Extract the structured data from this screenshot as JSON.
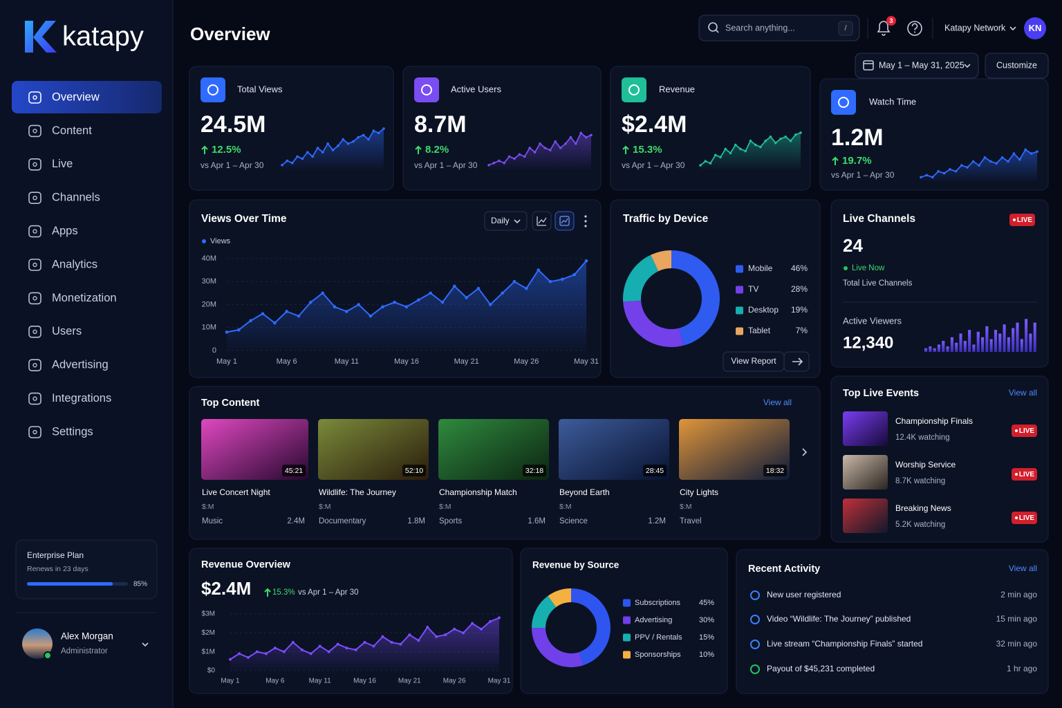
{
  "sidebar": {
    "brand": "katapy",
    "nav": [
      "Overview",
      "Content",
      "Live",
      "Channels",
      "Apps",
      "Analytics",
      "Monetization",
      "Users",
      "Advertising",
      "Integrations",
      "Settings"
    ],
    "plan": {
      "name": "Enterprise Plan",
      "renewal": "Renews in 23 days",
      "usage": {
        "value": 85,
        "label": "85%"
      }
    },
    "user": {
      "name": "Alex Morgan",
      "role": "Administrator"
    }
  },
  "header": {
    "title": "Overview",
    "search_placeholder": "Search anything...",
    "search_shortcut": "/",
    "notifications": 3,
    "account": "Katapy Network",
    "initials": "KN",
    "date_range": "May 1 – May 31, 2025",
    "customize": "Customize"
  },
  "kpis": [
    {
      "label": "Total Views",
      "value": "24.5M",
      "change": "12.5%",
      "comparison": "vs Apr 1 – Apr 30",
      "color": "#2f6bff",
      "trend": {
        "ylim": [
          0,
          10
        ],
        "values": [
          1,
          2,
          1.5,
          3,
          2.5,
          4,
          3,
          5,
          4,
          6,
          4.5,
          5.5,
          7,
          6,
          6.5,
          7.5,
          8,
          7,
          9,
          8.5,
          9.5
        ]
      }
    },
    {
      "label": "Active Users",
      "value": "8.7M",
      "change": "8.2%",
      "comparison": "vs Apr 1 – Apr 30",
      "color": "#7a4df2",
      "trend": {
        "ylim": [
          0,
          10
        ],
        "values": [
          1,
          1.5,
          2,
          1.5,
          3,
          2.5,
          3.5,
          3,
          5,
          4,
          6,
          5,
          4.5,
          6.5,
          5,
          6,
          7.5,
          6,
          8.5,
          7.5,
          8
        ]
      }
    },
    {
      "label": "Revenue",
      "value": "$2.4M",
      "change": "15.3%",
      "comparison": "vs Apr 1 – Apr 30",
      "color": "#1fbf98",
      "trend": {
        "ylim": [
          0,
          10
        ],
        "values": [
          1,
          2,
          1.5,
          3.5,
          3,
          5,
          4,
          6,
          5,
          4.5,
          7,
          6,
          5.5,
          7,
          8,
          6.5,
          7.5,
          8,
          7,
          8.5,
          9
        ]
      }
    },
    {
      "label": "Watch Time",
      "value": "1.2M",
      "change": "19.7%",
      "comparison": "vs Apr 1 – Apr 30",
      "color": "#2f6bff",
      "trend": {
        "ylim": [
          0,
          10
        ],
        "values": [
          1,
          1.5,
          1,
          2.5,
          2,
          3,
          2.5,
          4,
          3.5,
          5,
          4,
          6,
          5,
          4.5,
          6,
          5,
          7,
          5.5,
          8,
          7,
          7.5
        ]
      }
    }
  ],
  "views_over_time": {
    "type": "line",
    "title": "Views Over Time",
    "interval": "Daily",
    "grid": true,
    "categories": [
      "May 1",
      null,
      null,
      null,
      null,
      "May 6",
      null,
      null,
      null,
      null,
      "May 11",
      null,
      null,
      null,
      null,
      "May 16",
      null,
      null,
      null,
      null,
      "May 21",
      null,
      null,
      null,
      null,
      "May 26",
      null,
      null,
      null,
      null,
      "May 31"
    ],
    "series": [
      {
        "name": "Views",
        "color": "#2f6bff",
        "values": [
          8,
          9,
          13,
          16,
          12,
          17,
          15,
          21,
          25,
          19,
          17,
          20,
          15,
          19,
          21,
          19,
          22,
          25,
          21,
          28,
          23,
          27,
          20,
          25,
          30,
          27,
          35,
          30,
          31,
          33,
          39
        ]
      }
    ],
    "ylim": [
      0,
      40
    ],
    "yticks": [
      0,
      {
        "value": 10,
        "label": "10M"
      },
      {
        "value": 20,
        "label": "20M"
      },
      {
        "value": 30,
        "label": "30M"
      },
      {
        "value": 40,
        "label": "40M"
      }
    ]
  },
  "traffic_by_device": {
    "type": "pie",
    "title": "Traffic by Device",
    "categories": [
      "Mobile",
      "TV",
      "Desktop",
      "Tablet"
    ],
    "values": [
      46,
      28,
      19,
      7
    ],
    "value_labels": [
      "46%",
      "28%",
      "19%",
      "7%"
    ],
    "colors": [
      "#2f5bf0",
      "#7440ea",
      "#16aeb0",
      "#eaa55e"
    ],
    "action": "View Report"
  },
  "live_channels": {
    "title": "Live Channels",
    "badge": "LIVE",
    "count": 24,
    "status": "Live Now",
    "count_label": "Total Live Channels",
    "viewers_label": "Active Viewers",
    "viewers": "12,340",
    "viewer_trend": {
      "type": "bar",
      "color": "#5b45f0",
      "ylim": [
        0,
        10
      ],
      "values": [
        1,
        1.5,
        1,
        2,
        3,
        1.5,
        4,
        2.5,
        5,
        3,
        6,
        2,
        5.5,
        4,
        7,
        3.5,
        6,
        5,
        7.5,
        4,
        6.5,
        8,
        3.5,
        9,
        5,
        8
      ]
    }
  },
  "top_content": {
    "title": "Top Content",
    "action": "View all",
    "items": [
      {
        "title": "Live Concert Night",
        "duration": "45:21",
        "meta": "$:M",
        "category": "Music",
        "views": "2.4M"
      },
      {
        "title": "Wildlife: The Journey",
        "duration": "52:10",
        "meta": "$:M",
        "category": "Documentary",
        "views": "1.8M"
      },
      {
        "title": "Championship Match",
        "duration": "32:18",
        "meta": "$:M",
        "category": "Sports",
        "views": "1.6M"
      },
      {
        "title": "Beyond Earth",
        "duration": "28:45",
        "meta": "$:M",
        "category": "Science",
        "views": "1.2M"
      },
      {
        "title": "City Lights",
        "duration": "18:32",
        "meta": "$:M",
        "category": "Travel"
      }
    ]
  },
  "top_live_events": {
    "title": "Top Live Events",
    "action": "View all",
    "items": [
      {
        "name": "Championship Finals",
        "watching": "12.4K watching",
        "badge": "LIVE"
      },
      {
        "name": "Worship Service",
        "watching": "8.7K watching",
        "badge": "LIVE"
      },
      {
        "name": "Breaking News",
        "watching": "5.2K watching",
        "badge": "LIVE"
      }
    ]
  },
  "revenue_overview": {
    "type": "line",
    "title": "Revenue Overview",
    "total": "$2.4M",
    "change": "15.3%",
    "comparison": "vs Apr 1 – Apr 30",
    "color": "#7c4dff",
    "grid": true,
    "categories": [
      "May 1",
      null,
      null,
      null,
      null,
      "May 6",
      null,
      null,
      null,
      null,
      "May 11",
      null,
      null,
      null,
      null,
      "May 16",
      null,
      null,
      null,
      null,
      "May 21",
      null,
      null,
      null,
      null,
      "May 26",
      null,
      null,
      null,
      null,
      "May 31"
    ],
    "values": [
      0.6,
      0.9,
      0.7,
      1.0,
      0.9,
      1.2,
      1.0,
      1.5,
      1.1,
      0.9,
      1.3,
      1.0,
      1.4,
      1.2,
      1.1,
      1.5,
      1.3,
      1.8,
      1.5,
      1.4,
      1.9,
      1.6,
      2.3,
      1.8,
      1.9,
      2.2,
      2.0,
      2.5,
      2.2,
      2.6,
      2.8
    ],
    "ylim": [
      0,
      3
    ],
    "yticks": [
      {
        "value": 0,
        "label": "$0"
      },
      {
        "value": 1,
        "label": "$1M"
      },
      {
        "value": 2,
        "label": "$2M"
      },
      {
        "value": 3,
        "label": "$3M"
      }
    ]
  },
  "revenue_by_source": {
    "type": "pie",
    "title": "Revenue by Source",
    "categories": [
      "Subscriptions",
      "Advertising",
      "PPV / Rentals",
      "Sponsorships"
    ],
    "values": [
      45,
      30,
      15,
      10
    ],
    "value_labels": [
      "45%",
      "30%",
      "15%",
      "10%"
    ],
    "colors": [
      "#2f55f0",
      "#7040e8",
      "#17b0b0",
      "#f5b042"
    ]
  },
  "recent_activity": {
    "title": "Recent Activity",
    "action": "View all",
    "items": [
      {
        "text": "New user registered",
        "time": "2 min ago"
      },
      {
        "text": "Video “Wildlife: The Journey” published",
        "time": "15 min ago"
      },
      {
        "text": "Live stream “Championship Finals” started",
        "time": "32 min ago"
      },
      {
        "text": "Payout of $45,231 completed",
        "time": "1 hr ago"
      }
    ]
  }
}
